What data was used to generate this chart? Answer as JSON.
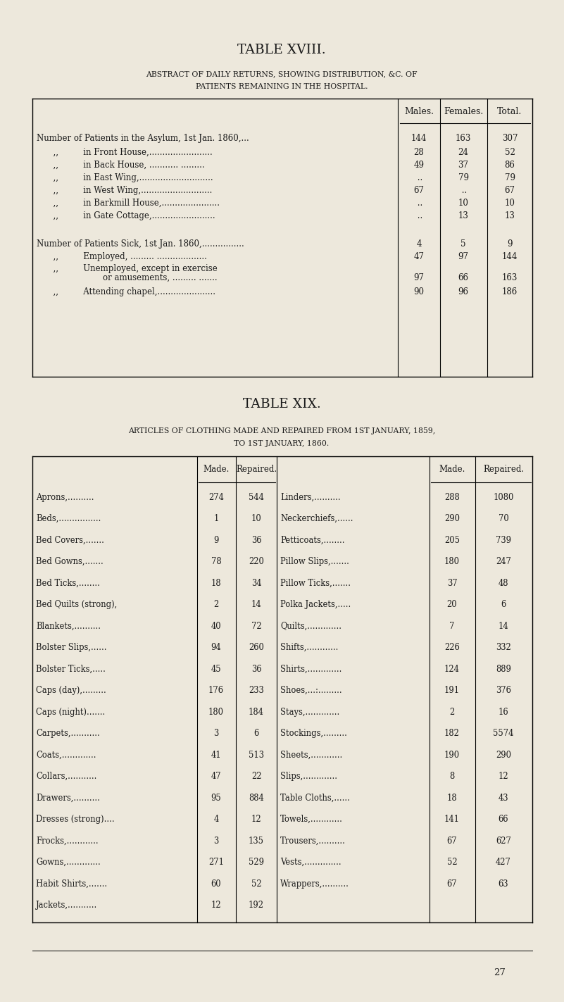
{
  "bg_color": "#ede8dc",
  "title18": "TABLE XVIII.",
  "subtitle18_line1": "Abstract of Daily Returns, Showing Distribution, &c. of",
  "subtitle18_line2": "Patients Remaining in the Hospital.",
  "title19": "TABLE XIX.",
  "subtitle19_line1": "Articles of Clothing Made and Repaired from 1st January, 1859,",
  "subtitle19_line2": "to 1st January, 1860.",
  "t18_rows": [
    [
      "Number of Patients in the Asylum, 1st Jan. 1860,...",
      "144",
      "163",
      "307"
    ],
    [
      "  ,,   in Front House,........................",
      "28",
      "24",
      "52"
    ],
    [
      "  ,,   in Back House, ........... .........",
      "49",
      "37",
      "86"
    ],
    [
      "  ,,   in East Wing,............................",
      " ..",
      "79",
      "79"
    ],
    [
      "  ,,   in West Wing,...........................",
      "67",
      " ..",
      "67"
    ],
    [
      "  ,,   in Barkmill House,......................",
      " ..",
      "10",
      "10"
    ],
    [
      "  ,,   in Gate Cottage,........................",
      " ..",
      "13",
      "13"
    ],
    [
      "BLANK",
      "",
      "",
      ""
    ],
    [
      "Number of Patients Sick, 1st Jan. 1860,................",
      "4",
      "5",
      "9"
    ],
    [
      "  ,,   Employed, ......... ...................",
      "47",
      "97",
      "144"
    ],
    [
      "  ,,   Unemployed, except in exercise",
      "",
      "",
      ""
    ],
    [
      "        or amusements, ......... .......",
      "97",
      "66",
      "163"
    ],
    [
      "  ,,   Attending chapel,......................",
      "90",
      "96",
      "186"
    ]
  ],
  "t19_left": [
    [
      "Aprons,..........",
      "274",
      "544"
    ],
    [
      "Beds,................",
      "1",
      "10"
    ],
    [
      "Bed Covers,.......",
      "9",
      "36"
    ],
    [
      "Bed Gowns,.......",
      "78",
      "220"
    ],
    [
      "Bed Ticks,........",
      "18",
      "34"
    ],
    [
      "Bed Quilts (strong),",
      "2",
      "14"
    ],
    [
      "Blankets,..........",
      "40",
      "72"
    ],
    [
      "Bolster Slips,......",
      "94",
      "260"
    ],
    [
      "Bolster Ticks,.....",
      "45",
      "36"
    ],
    [
      "Caps (day),.........",
      "176",
      "233"
    ],
    [
      "Caps (night).......",
      "180",
      "184"
    ],
    [
      "Carpets,...........",
      "3",
      "6"
    ],
    [
      "Coats,.............",
      "41",
      "513"
    ],
    [
      "Collars,...........",
      "47",
      "22"
    ],
    [
      "Drawers,..........",
      "95",
      "884"
    ],
    [
      "Dresses (strong)....",
      "4",
      "12"
    ],
    [
      "Frocks,............",
      "3",
      "135"
    ],
    [
      "Gowns,.............",
      "271",
      "529"
    ],
    [
      "Habit Shirts,.......",
      "60",
      "52"
    ],
    [
      "Jackets,...........",
      "12",
      "192"
    ]
  ],
  "t19_right": [
    [
      "Linders,..........",
      "288",
      "1080"
    ],
    [
      "Neckerchiefs,......",
      "290",
      "70"
    ],
    [
      "Petticoats,........",
      "205",
      "739"
    ],
    [
      "Pillow Slips,.......",
      "180",
      "247"
    ],
    [
      "Pillow Ticks,.......",
      "37",
      "48"
    ],
    [
      "Polka Jackets,.....",
      "20",
      "6"
    ],
    [
      "Quilts,.............",
      "7",
      "14"
    ],
    [
      "Shifts,............",
      "226",
      "332"
    ],
    [
      "Shirts,.............",
      "124",
      "889"
    ],
    [
      "Shoes,...:.........",
      "191",
      "376"
    ],
    [
      "Stays,.............",
      "2",
      "16"
    ],
    [
      "Stockings,.........",
      "182",
      "5574"
    ],
    [
      "Sheets,............",
      "190",
      "290"
    ],
    [
      "Slips,.............",
      "8",
      "12"
    ],
    [
      "Table Cloths,......",
      "18",
      "43"
    ],
    [
      "Towels,............",
      "141",
      "66"
    ],
    [
      "Trousers,..........",
      "67",
      "627"
    ],
    [
      "Vests,..............",
      "52",
      "427"
    ],
    [
      "Wrappers,..........",
      "67",
      "63"
    ]
  ],
  "page_number": "27"
}
